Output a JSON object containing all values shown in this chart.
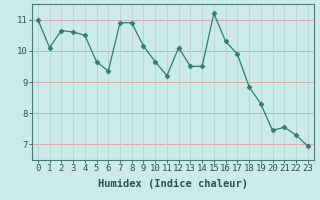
{
  "x": [
    0,
    1,
    2,
    3,
    4,
    5,
    6,
    7,
    8,
    9,
    10,
    11,
    12,
    13,
    14,
    15,
    16,
    17,
    18,
    19,
    20,
    21,
    22,
    23
  ],
  "y": [
    11.0,
    10.1,
    10.65,
    10.6,
    10.5,
    9.65,
    9.35,
    10.9,
    10.9,
    10.15,
    9.65,
    9.2,
    10.1,
    9.5,
    9.5,
    11.2,
    10.3,
    9.9,
    8.85,
    8.3,
    7.45,
    7.55,
    7.3,
    6.95
  ],
  "line_color": "#2e7d6e",
  "marker": "D",
  "marker_size": 2.5,
  "bg_color": "#cceaea",
  "grid_color_x": "#d4a0a0",
  "grid_color_y": "#b8d0d0",
  "xlabel": "Humidex (Indice chaleur)",
  "xlim": [
    -0.5,
    23.5
  ],
  "ylim": [
    6.5,
    11.5
  ],
  "yticks": [
    7,
    8,
    9,
    10,
    11
  ],
  "xticks": [
    0,
    1,
    2,
    3,
    4,
    5,
    6,
    7,
    8,
    9,
    10,
    11,
    12,
    13,
    14,
    15,
    16,
    17,
    18,
    19,
    20,
    21,
    22,
    23
  ],
  "tick_fontsize": 6.5,
  "xlabel_fontsize": 7.5,
  "spine_color": "#4a7a70",
  "tick_color": "#2e5050"
}
